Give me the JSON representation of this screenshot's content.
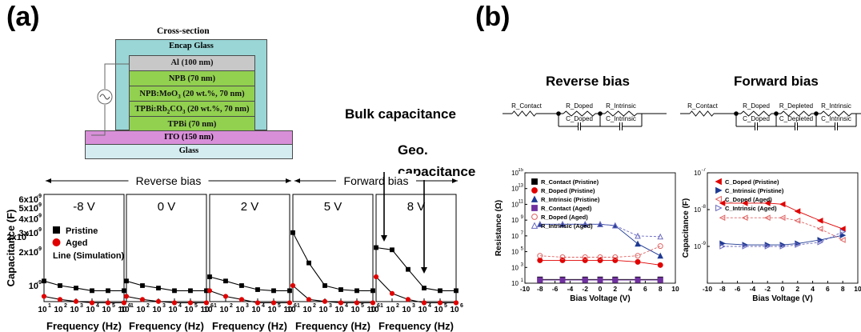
{
  "panel_a_label": "(a)",
  "panel_b_label": "(b)",
  "device": {
    "title": "Cross-section",
    "encap": "Encap Glass",
    "layers": [
      {
        "name": "Al (100 nm)",
        "color": "#c8c8c8"
      },
      {
        "name": "NPB (70 nm)",
        "color": "#92d050"
      },
      {
        "name": "NPB:MoO3 (20 wt.%, 70 nm)",
        "color": "#92d050"
      },
      {
        "name": "TPBi:Rb2CO3 (20 wt.%, 70 nm)",
        "color": "#92d050"
      },
      {
        "name": "TPBi (70 nm)",
        "color": "#92d050"
      }
    ],
    "ito": "ITO (150 nm)",
    "glass": "Glass"
  },
  "annotations": {
    "bulk": "Bulk capacitance",
    "geo1": "Geo.",
    "geo2": "capacitance"
  },
  "panel_a": {
    "reverse_label": "Reverse bias",
    "forward_label": "Forward bias",
    "ylabel": "Capacitance (F)",
    "xlabel": "Frequency (Hz)",
    "y_ticks": [
      "6x10",
      "5x10",
      "4x10",
      "3x10",
      "2x10",
      "2x10",
      "10"
    ],
    "x_ticks": [
      "10",
      "10",
      "10",
      "10",
      "10",
      "10"
    ],
    "legend": {
      "pristine": "Pristine",
      "aged": "Aged",
      "line": "Line (Simulation)"
    },
    "colors": {
      "pristine": "#000000",
      "aged": "#e00000"
    }
  },
  "panel_b": {
    "reverse_title": "Reverse bias",
    "forward_title": "Forward bias",
    "reverse_circuit": [
      "R_Contact",
      "R_Doped",
      "C_Doped",
      "R_Intrinsic",
      "C_Intrinsic"
    ],
    "forward_circuit": [
      "R_Contact",
      "R_Doped",
      "C_Doped",
      "R_Depleted",
      "C_Depleted",
      "R_Intrinsic",
      "C_Intrinsic"
    ]
  },
  "chart_data": [
    {
      "type": "scatter",
      "title": "-8 V",
      "xlabel": "Frequency (Hz)",
      "ylabel": "Capacitance (F)",
      "x_scale": "log",
      "xlim": [
        10,
        1000000
      ],
      "series": [
        {
          "name": "Pristine",
          "x": [
            10,
            100,
            1000,
            10000,
            100000,
            1000000
          ],
          "y": [
            1.1e-09,
            1e-09,
            9.5e-10,
            9e-10,
            9e-10,
            9e-10
          ]
        },
        {
          "name": "Aged",
          "x": [
            10,
            100,
            1000,
            10000,
            100000,
            1000000
          ],
          "y": [
            8e-10,
            7.5e-10,
            7.2e-10,
            7e-10,
            7e-10,
            7e-10
          ]
        }
      ]
    },
    {
      "type": "scatter",
      "title": "0 V",
      "xlabel": "Frequency (Hz)",
      "x_scale": "log",
      "xlim": [
        10,
        1000000
      ],
      "series": [
        {
          "name": "Pristine",
          "x": [
            10,
            100,
            1000,
            10000,
            100000,
            1000000
          ],
          "y": [
            1.1e-09,
            1e-09,
            9.5e-10,
            9e-10,
            9e-10,
            9e-10
          ]
        },
        {
          "name": "Aged",
          "x": [
            10,
            100,
            1000,
            10000,
            100000,
            1000000
          ],
          "y": [
            8e-10,
            7.5e-10,
            7.2e-10,
            7e-10,
            7e-10,
            7e-10
          ]
        }
      ]
    },
    {
      "type": "scatter",
      "title": "2 V",
      "xlabel": "Frequency (Hz)",
      "x_scale": "log",
      "xlim": [
        10,
        1000000
      ],
      "series": [
        {
          "name": "Pristine",
          "x": [
            10,
            100,
            1000,
            10000,
            100000,
            1000000
          ],
          "y": [
            1.2e-09,
            1.1e-09,
            1e-09,
            9.2e-10,
            9e-10,
            9e-10
          ]
        },
        {
          "name": "Aged",
          "x": [
            10,
            100,
            1000,
            10000,
            100000,
            1000000
          ],
          "y": [
            9e-10,
            8e-10,
            7.5e-10,
            7e-10,
            7e-10,
            7e-10
          ]
        }
      ]
    },
    {
      "type": "scatter",
      "title": "5 V",
      "xlabel": "Frequency (Hz)",
      "x_scale": "log",
      "xlim": [
        10,
        1000000
      ],
      "series": [
        {
          "name": "Pristine",
          "x": [
            10,
            100,
            1000,
            10000,
            100000,
            1000000
          ],
          "y": [
            3e-09,
            1.6e-09,
            1e-09,
            9.2e-10,
            9e-10,
            9e-10
          ]
        },
        {
          "name": "Aged",
          "x": [
            10,
            100,
            1000,
            10000,
            100000,
            1000000
          ],
          "y": [
            1e-09,
            7.5e-10,
            7.2e-10,
            7e-10,
            7e-10,
            7e-10
          ]
        }
      ]
    },
    {
      "type": "scatter",
      "title": "8 V",
      "xlabel": "Frequency (Hz)",
      "x_scale": "log",
      "xlim": [
        10,
        1000000
      ],
      "series": [
        {
          "name": "Pristine",
          "x": [
            10,
            100,
            1000,
            10000,
            100000,
            1000000
          ],
          "y": [
            2.2e-09,
            2.1e-09,
            1.4e-09,
            9.5e-10,
            9e-10,
            9e-10
          ]
        },
        {
          "name": "Aged",
          "x": [
            10,
            100,
            1000,
            10000,
            100000,
            1000000
          ],
          "y": [
            1.2e-09,
            8.5e-10,
            7.5e-10,
            7e-10,
            7e-10,
            7e-10
          ]
        }
      ]
    },
    {
      "type": "line",
      "xlabel": "Bias Voltage (V)",
      "ylabel": "Resistance (Ω)",
      "y_scale": "log",
      "xlim": [
        -10,
        10
      ],
      "ylim": [
        10,
        1000000000000000.0
      ],
      "x_ticks": [
        "-10",
        "-8",
        "-6",
        "-4",
        "-2",
        "0",
        "2",
        "4",
        "6",
        "8",
        "10"
      ],
      "y_tick_exponents": [
        "1",
        "3",
        "5",
        "7",
        "9",
        "11",
        "13",
        "15"
      ],
      "series": [
        {
          "name": "R_Contact (Pristine)",
          "color": "#000000",
          "marker": "square-filled",
          "x": [
            -8,
            -5,
            -2,
            0,
            2,
            5,
            8
          ],
          "y": [
            30,
            30,
            30,
            30,
            30,
            30,
            30
          ]
        },
        {
          "name": "R_Doped (Pristine)",
          "color": "#e00000",
          "marker": "circle-filled",
          "x": [
            -8,
            -5,
            -2,
            0,
            2,
            5,
            8
          ],
          "y": [
            8000,
            8000,
            8000,
            8000,
            8000,
            5000,
            2000
          ]
        },
        {
          "name": "R_Intrinsic (Pristine)",
          "color": "#1f3a93",
          "marker": "triangle-filled",
          "x": [
            -8,
            -5,
            -2,
            0,
            2,
            5,
            8
          ],
          "y": [
            300000000.0,
            300000000.0,
            300000000.0,
            300000000.0,
            200000000.0,
            1000000.0,
            30000.0
          ]
        },
        {
          "name": "R_Contact (Aged)",
          "color": "#7030a0",
          "marker": "square-filled",
          "x": [
            -8,
            -5,
            -2,
            0,
            2,
            5,
            8
          ],
          "y": [
            25,
            25,
            25,
            25,
            25,
            25,
            25
          ]
        },
        {
          "name": "R_Doped (Aged)",
          "color": "#e06060",
          "marker": "circle-open",
          "x": [
            -8,
            -5,
            -2,
            0,
            2,
            5,
            8
          ],
          "y": [
            30000.0,
            20000.0,
            20000.0,
            20000.0,
            20000.0,
            30000.0,
            500000.0
          ]
        },
        {
          "name": "R_Intrinsic (Aged)",
          "color": "#6a6ac0",
          "marker": "triangle-open",
          "x": [
            -8,
            -5,
            -2,
            0,
            2,
            5,
            8
          ],
          "y": [
            300000000.0,
            300000000.0,
            300000000.0,
            300000000.0,
            200000000.0,
            10000000.0,
            8000000.0
          ]
        }
      ]
    },
    {
      "type": "line",
      "xlabel": "Bias Voltage (V)",
      "ylabel": "Capacitance (F)",
      "y_scale": "log",
      "xlim": [
        -10,
        10
      ],
      "ylim": [
        1e-10,
        1e-07
      ],
      "x_ticks": [
        "-10",
        "-8",
        "-6",
        "-4",
        "-2",
        "0",
        "2",
        "4",
        "6",
        "8",
        "10"
      ],
      "y_tick_exponents": [
        "-7",
        "-8",
        "-9"
      ],
      "series": [
        {
          "name": "C_Doped (Pristine)",
          "color": "#e00000",
          "marker": "triangle-left-filled",
          "x": [
            -8,
            -5,
            -2,
            0,
            2,
            5,
            8
          ],
          "y": [
            1.5e-08,
            1.5e-08,
            1.5e-08,
            1.4e-08,
            9e-09,
            5e-09,
            3e-09
          ]
        },
        {
          "name": "C_Intrinsic (Pristine)",
          "color": "#1f3a93",
          "marker": "triangle-right-filled",
          "x": [
            -8,
            -5,
            -2,
            0,
            2,
            5,
            8
          ],
          "y": [
            1.2e-09,
            1.1e-09,
            1.1e-09,
            1.1e-09,
            1.2e-09,
            1.5e-09,
            2e-09
          ]
        },
        {
          "name": "C_Doped (Aged)",
          "color": "#e06060",
          "marker": "triangle-left-open",
          "x": [
            -8,
            -5,
            -2,
            0,
            2,
            5,
            8
          ],
          "y": [
            6e-09,
            6e-09,
            6e-09,
            6e-09,
            5e-09,
            3e-09,
            1.5e-09
          ]
        },
        {
          "name": "C_Intrinsic (Aged)",
          "color": "#6a6ac0",
          "marker": "triangle-right-open",
          "x": [
            -8,
            -5,
            -2,
            0,
            2,
            5,
            8
          ],
          "y": [
            1e-09,
            1e-09,
            1e-09,
            1e-09,
            1.1e-09,
            1.3e-09,
            2.5e-09
          ]
        }
      ]
    }
  ]
}
